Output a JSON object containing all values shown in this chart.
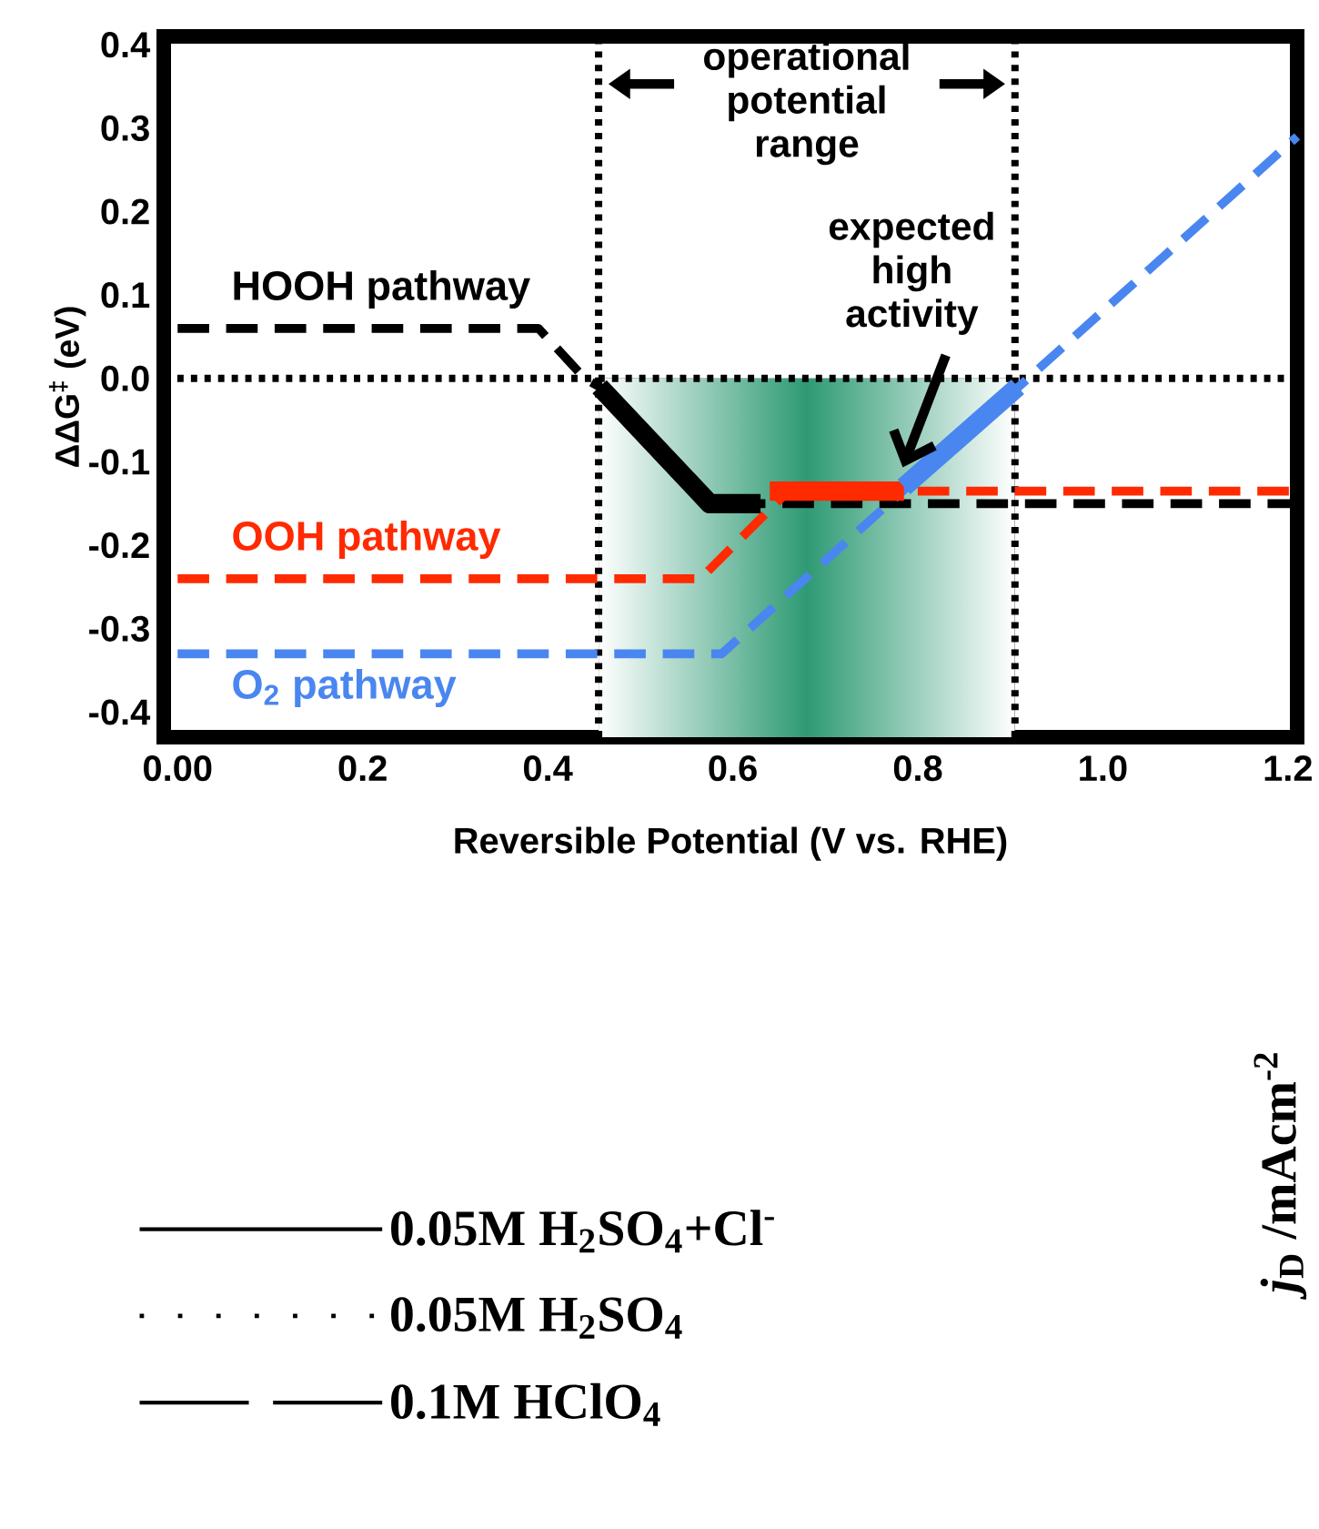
{
  "chart_data": {
    "type": "line",
    "xlabel": "Reversible Potential (V vs. RHE)",
    "ylabel": "ΔΔG$^{‡}$ (eV)",
    "xlim": [
      -0.015,
      1.21
    ],
    "ylim": [
      -0.43,
      0.41
    ],
    "xticks": [
      {
        "value": 0,
        "label": "0.00"
      },
      0.2,
      0.4,
      0.6,
      0.8,
      {
        "value": 1,
        "label": "1.0"
      },
      1.2
    ],
    "yticks": [
      -0.4,
      -0.3,
      -0.2,
      -0.1,
      {
        "value": 0,
        "label": "0.0"
      },
      0.1,
      0.2,
      0.3,
      0.4
    ],
    "grid": false,
    "legend": "bottom left",
    "series": [
      {
        "name": "HOOH pathway",
        "color": "#000000",
        "line_style": "dashed",
        "x": [
          0,
          0.39,
          0.44,
          0.456,
          0.575,
          0.63,
          1.21
        ],
        "values": [
          0.06,
          0.06,
          0.0,
          -0.01,
          -0.15,
          -0.15,
          -0.15
        ]
      },
      {
        "name": "OOH pathway",
        "color": "#ff2a00",
        "line_style": "dashed",
        "x": [
          0,
          0.565,
          0.66,
          1.21
        ],
        "values": [
          -0.24,
          -0.24,
          -0.135,
          -0.135
        ]
      },
      {
        "name": "O$_{2}$ pathway",
        "color": "#4a86f0",
        "line_style": "dashed",
        "x": [
          0,
          0.588,
          1.21
        ],
        "values": [
          -0.33,
          -0.33,
          0.29
        ]
      },
      {
        "color": "#000000",
        "line_style": "solid",
        "x": [
          0.456,
          0.575,
          0.63
        ],
        "values": [
          -0.01,
          -0.15,
          -0.15
        ]
      },
      {
        "color": "#ff2a00",
        "line_style": "solid",
        "x": [
          0.64,
          0.785
        ],
        "values": [
          -0.135,
          -0.135
        ]
      },
      {
        "color": "#4a86f0",
        "line_style": "solid",
        "x": [
          0.785,
          0.908
        ],
        "values": [
          -0.13,
          -0.01
        ]
      },
      {
        "name": "0.05M H$_{2}$SO$_{4}$+Cl$^{-}$",
        "color": "#000000",
        "line_style": "solid"
      },
      {
        "name": "0.05M H$_{2}$SO$_{4}$",
        "color": "#000000",
        "line_style": "dotted"
      },
      {
        "name": "0.1M HClO$_{4}$",
        "color": "#000000",
        "line_style": "dashed"
      }
    ],
    "ref_lines": [
      {
        "axis": "x",
        "value": 0.455,
        "color": "#000000",
        "line_style": "dotted"
      },
      {
        "axis": "x",
        "value": 0.905,
        "color": "#000000",
        "line_style": "dotted"
      },
      {
        "axis": "y",
        "value": 0.0,
        "color": "#000000",
        "line_style": "dotted"
      }
    ],
    "bands": [
      {
        "axis": "x",
        "from": 0.455,
        "to": 0.905,
        "color": "#2e9a74"
      }
    ],
    "annotations": [
      "operational potential range",
      "expected high activity",
      "*j*$_{D}$ /mAcm$^{-2}$"
    ]
  }
}
